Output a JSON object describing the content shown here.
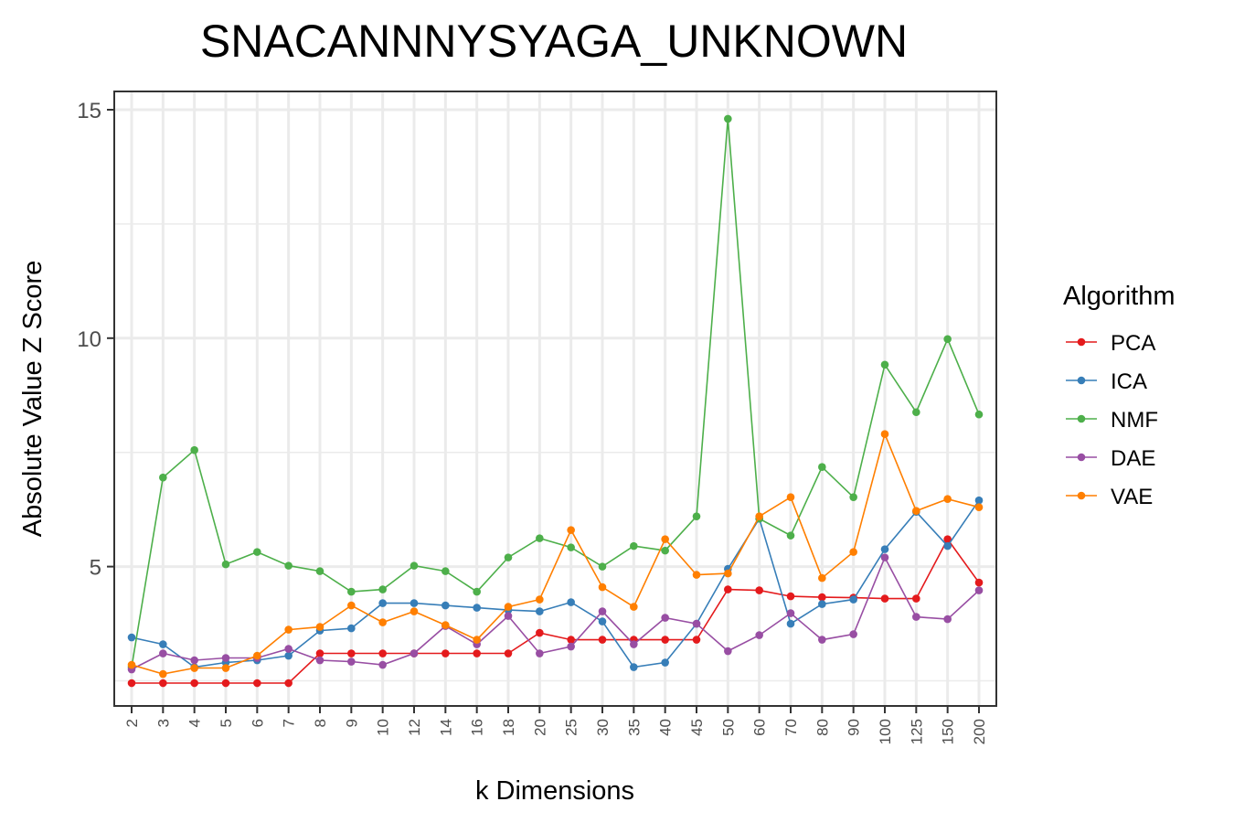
{
  "chart_data": {
    "type": "line",
    "title": "SNACANNNYSYAGA_UNKNOWN",
    "xlabel": "k Dimensions",
    "ylabel": "Absolute Value Z Score",
    "categories": [
      "2",
      "3",
      "4",
      "5",
      "6",
      "7",
      "8",
      "9",
      "10",
      "12",
      "14",
      "16",
      "18",
      "20",
      "25",
      "30",
      "35",
      "40",
      "45",
      "50",
      "60",
      "70",
      "80",
      "90",
      "100",
      "125",
      "150",
      "200"
    ],
    "ylim": [
      1.95,
      15.4
    ],
    "y_ticks": [
      5,
      10,
      15
    ],
    "grid": true,
    "legend": {
      "title": "Algorithm",
      "position": "right"
    },
    "series": [
      {
        "name": "PCA",
        "color": "#E41A1C",
        "values": [
          2.45,
          2.45,
          2.45,
          2.45,
          2.45,
          2.45,
          3.1,
          3.1,
          3.1,
          3.1,
          3.1,
          3.1,
          3.1,
          3.55,
          3.4,
          3.4,
          3.4,
          3.4,
          3.4,
          4.5,
          4.48,
          4.35,
          4.33,
          4.32,
          4.3,
          4.3,
          5.6,
          4.65
        ]
      },
      {
        "name": "ICA",
        "color": "#377EB8",
        "values": [
          3.45,
          3.3,
          2.8,
          2.9,
          2.95,
          3.05,
          3.6,
          3.65,
          4.2,
          4.2,
          4.15,
          4.1,
          4.05,
          4.02,
          4.22,
          3.8,
          2.8,
          2.9,
          3.75,
          4.95,
          6.05,
          3.75,
          4.18,
          4.28,
          5.38,
          6.2,
          5.45,
          6.45
        ]
      },
      {
        "name": "NMF",
        "color": "#4DAF4A",
        "values": [
          2.8,
          6.95,
          7.55,
          5.05,
          5.32,
          5.02,
          4.9,
          4.45,
          4.5,
          5.02,
          4.9,
          4.45,
          5.2,
          5.62,
          5.42,
          5.0,
          5.45,
          5.35,
          6.1,
          14.8,
          6.05,
          5.68,
          7.18,
          6.52,
          9.42,
          8.38,
          9.98,
          8.33
        ]
      },
      {
        "name": "DAE",
        "color": "#984EA3",
        "values": [
          2.75,
          3.1,
          2.95,
          3.0,
          3.0,
          3.2,
          2.95,
          2.92,
          2.85,
          3.1,
          3.7,
          3.3,
          3.92,
          3.1,
          3.25,
          4.02,
          3.3,
          3.88,
          3.75,
          3.15,
          3.5,
          3.98,
          3.4,
          3.52,
          5.2,
          3.9,
          3.85,
          4.48
        ]
      },
      {
        "name": "VAE",
        "color": "#FF7F00",
        "values": [
          2.85,
          2.65,
          2.78,
          2.78,
          3.05,
          3.62,
          3.68,
          4.15,
          3.78,
          4.02,
          3.72,
          3.4,
          4.12,
          4.28,
          5.8,
          4.55,
          4.12,
          5.6,
          4.82,
          4.85,
          6.1,
          6.52,
          4.75,
          5.32,
          7.9,
          6.22,
          6.48,
          6.3
        ]
      }
    ]
  }
}
